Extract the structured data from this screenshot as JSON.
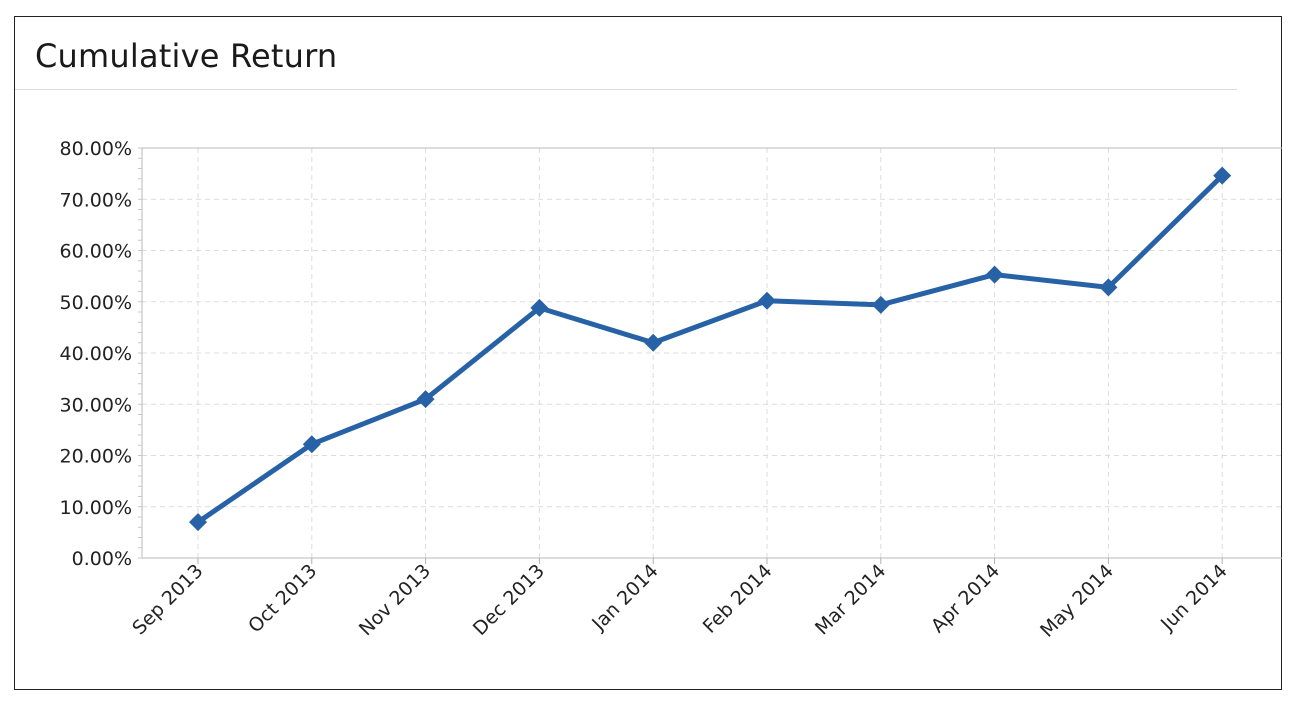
{
  "panel": {
    "title": "Cumulative Return"
  },
  "chart_data": {
    "type": "line",
    "title": "Cumulative Return",
    "xlabel": "",
    "ylabel": "",
    "categories": [
      "Sep 2013",
      "Oct 2013",
      "Nov 2013",
      "Dec 2013",
      "Jan 2014",
      "Feb 2014",
      "Mar 2014",
      "Apr 2014",
      "May 2014",
      "Jun 2014"
    ],
    "series": [
      {
        "values": [
          7.0,
          22.2,
          31.0,
          48.8,
          42.0,
          50.2,
          49.4,
          55.3,
          52.8,
          74.6
        ],
        "color": "#2862a6",
        "marker": "diamond"
      }
    ],
    "ylim": [
      0,
      80
    ],
    "yticks": [
      0,
      10,
      20,
      30,
      40,
      50,
      60,
      70,
      80
    ],
    "ytick_labels": [
      "0.00%",
      "10.00%",
      "20.00%",
      "30.00%",
      "40.00%",
      "50.00%",
      "60.00%",
      "70.00%",
      "80.00%"
    ],
    "grid": true,
    "grid_style": "dashed",
    "legend": "none"
  }
}
